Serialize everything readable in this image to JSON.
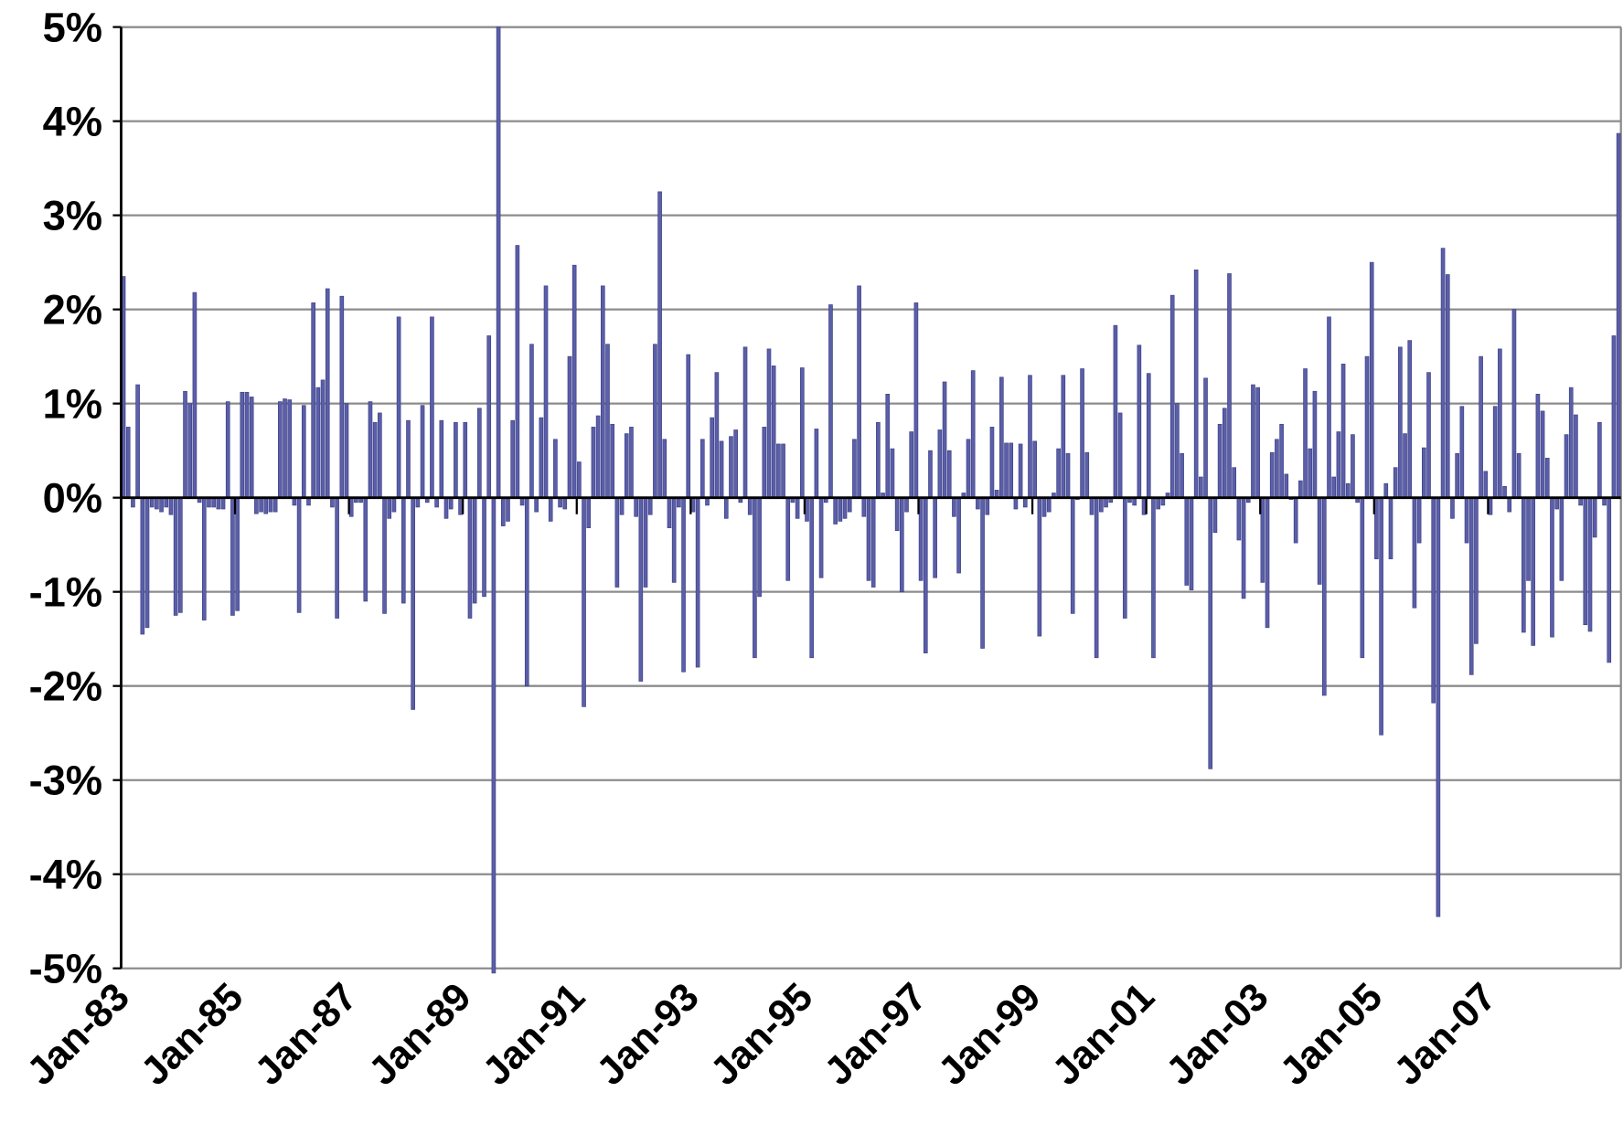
{
  "chart_data": {
    "type": "bar",
    "color": "#5b5fa8",
    "edge_color": "#3c3f86",
    "grid": true,
    "ylim": [
      -5,
      5
    ],
    "yticks": [
      {
        "value": 5,
        "label": "5%"
      },
      {
        "value": 4,
        "label": "4%"
      },
      {
        "value": 3,
        "label": "3%"
      },
      {
        "value": 2,
        "label": "2%"
      },
      {
        "value": 1,
        "label": "1%"
      },
      {
        "value": 0,
        "label": "0%"
      },
      {
        "value": -1,
        "label": "-1%"
      },
      {
        "value": -2,
        "label": "-2%"
      },
      {
        "value": -3,
        "label": "-3%"
      },
      {
        "value": -4,
        "label": "-4%"
      },
      {
        "value": -5,
        "label": "-5%"
      }
    ],
    "categories": [
      "Jan-83",
      null,
      null,
      null,
      null,
      null,
      null,
      null,
      null,
      null,
      null,
      null,
      null,
      null,
      null,
      null,
      null,
      null,
      null,
      null,
      null,
      null,
      null,
      null,
      "Jan-85",
      null,
      null,
      null,
      null,
      null,
      null,
      null,
      null,
      null,
      null,
      null,
      null,
      null,
      null,
      null,
      null,
      null,
      null,
      null,
      null,
      null,
      null,
      null,
      "Jan-87",
      null,
      null,
      null,
      null,
      null,
      null,
      null,
      null,
      null,
      null,
      null,
      null,
      null,
      null,
      null,
      null,
      null,
      null,
      null,
      null,
      null,
      null,
      null,
      "Jan-89",
      null,
      null,
      null,
      null,
      null,
      null,
      null,
      null,
      null,
      null,
      null,
      null,
      null,
      null,
      null,
      null,
      null,
      null,
      null,
      null,
      null,
      null,
      null,
      "Jan-91",
      null,
      null,
      null,
      null,
      null,
      null,
      null,
      null,
      null,
      null,
      null,
      null,
      null,
      null,
      null,
      null,
      null,
      null,
      null,
      null,
      null,
      null,
      null,
      "Jan-93",
      null,
      null,
      null,
      null,
      null,
      null,
      null,
      null,
      null,
      null,
      null,
      null,
      null,
      null,
      null,
      null,
      null,
      null,
      null,
      null,
      null,
      null,
      null,
      "Jan-95",
      null,
      null,
      null,
      null,
      null,
      null,
      null,
      null,
      null,
      null,
      null,
      null,
      null,
      null,
      null,
      null,
      null,
      null,
      null,
      null,
      null,
      null,
      null,
      "Jan-97",
      null,
      null,
      null,
      null,
      null,
      null,
      null,
      null,
      null,
      null,
      null,
      null,
      null,
      null,
      null,
      null,
      null,
      null,
      null,
      null,
      null,
      null,
      null,
      "Jan-99",
      null,
      null,
      null,
      null,
      null,
      null,
      null,
      null,
      null,
      null,
      null,
      null,
      null,
      null,
      null,
      null,
      null,
      null,
      null,
      null,
      null,
      null,
      null,
      "Jan-01",
      null,
      null,
      null,
      null,
      null,
      null,
      null,
      null,
      null,
      null,
      null,
      null,
      null,
      null,
      null,
      null,
      null,
      null,
      null,
      null,
      null,
      null,
      null,
      "Jan-03",
      null,
      null,
      null,
      null,
      null,
      null,
      null,
      null,
      null,
      null,
      null,
      null,
      null,
      null,
      null,
      null,
      null,
      null,
      null,
      null,
      null,
      null,
      null,
      "Jan-05",
      null,
      null,
      null,
      null,
      null,
      null,
      null,
      null,
      null,
      null,
      null,
      null,
      null,
      null,
      null,
      null,
      null,
      null,
      null,
      null,
      null,
      null,
      null,
      "Jan-07",
      null,
      null,
      null,
      null,
      null,
      null,
      null,
      null,
      null,
      null,
      null,
      null,
      null,
      null,
      null,
      null,
      null,
      null,
      null,
      null,
      null,
      null,
      null,
      null,
      null,
      null,
      null
    ],
    "values": [
      2.35,
      0.75,
      -0.1,
      1.2,
      -1.45,
      -1.38,
      -0.1,
      -0.12,
      -0.15,
      -0.1,
      -0.18,
      -1.25,
      -1.22,
      1.13,
      1.0,
      2.18,
      -0.05,
      -1.3,
      -0.1,
      -0.1,
      -0.12,
      -0.12,
      1.02,
      -1.25,
      -1.2,
      1.12,
      1.12,
      1.07,
      -0.17,
      -0.15,
      -0.17,
      -0.15,
      -0.15,
      1.02,
      1.05,
      1.04,
      -0.08,
      -1.22,
      0.98,
      -0.08,
      2.07,
      1.17,
      1.25,
      2.22,
      -0.1,
      -1.28,
      2.14,
      1.0,
      -0.2,
      -0.05,
      -0.05,
      -1.1,
      1.02,
      0.8,
      0.9,
      -1.23,
      -0.22,
      -0.15,
      1.92,
      -1.12,
      0.82,
      -2.25,
      -0.1,
      0.98,
      -0.05,
      1.92,
      -0.1,
      0.82,
      -0.22,
      -0.12,
      0.8,
      -0.18,
      0.8,
      -1.28,
      -1.12,
      0.95,
      -1.05,
      1.72,
      -5.05,
      5.0,
      -0.3,
      -0.25,
      0.82,
      2.68,
      -0.08,
      -2.0,
      1.63,
      -0.15,
      0.85,
      2.25,
      -0.25,
      0.62,
      -0.1,
      -0.12,
      1.5,
      2.47,
      0.38,
      -2.22,
      -0.32,
      0.75,
      0.87,
      2.25,
      1.63,
      0.78,
      -0.95,
      -0.18,
      0.68,
      0.75,
      -0.2,
      -1.95,
      -0.95,
      -0.18,
      1.63,
      3.25,
      0.62,
      -0.32,
      -0.9,
      -0.1,
      -1.85,
      1.52,
      -0.15,
      -1.8,
      0.62,
      -0.08,
      0.85,
      1.33,
      0.6,
      -0.22,
      0.65,
      0.72,
      -0.05,
      1.6,
      -0.18,
      -1.7,
      -1.05,
      0.75,
      1.58,
      1.4,
      0.57,
      0.57,
      -0.88,
      -0.05,
      -0.22,
      1.38,
      -0.25,
      -1.7,
      0.73,
      -0.85,
      -0.05,
      2.05,
      -0.28,
      -0.25,
      -0.22,
      -0.15,
      0.62,
      2.25,
      -0.2,
      -0.88,
      -0.95,
      0.8,
      0.05,
      1.1,
      0.52,
      -0.35,
      -1.0,
      -0.15,
      0.7,
      2.07,
      -0.88,
      -1.65,
      0.5,
      -0.85,
      0.72,
      1.23,
      0.5,
      -0.2,
      -0.8,
      0.05,
      0.62,
      1.35,
      -0.12,
      -1.6,
      -0.18,
      0.75,
      0.08,
      1.28,
      0.58,
      0.58,
      -0.12,
      0.57,
      -0.1,
      1.3,
      0.6,
      -1.47,
      -0.2,
      -0.15,
      0.05,
      0.52,
      1.3,
      0.47,
      -1.23,
      -0.02,
      1.37,
      0.48,
      -0.18,
      -1.7,
      -0.15,
      -0.1,
      -0.05,
      1.83,
      0.9,
      -1.28,
      -0.05,
      -0.08,
      1.62,
      -0.18,
      1.32,
      -1.7,
      -0.12,
      -0.08,
      0.05,
      2.15,
      1.0,
      0.47,
      -0.93,
      -0.98,
      2.42,
      0.22,
      1.27,
      -2.88,
      -0.37,
      0.78,
      0.95,
      2.38,
      0.32,
      -0.45,
      -1.07,
      -0.05,
      1.2,
      1.17,
      -0.9,
      -1.38,
      0.48,
      0.62,
      0.78,
      0.25,
      -0.02,
      -0.48,
      0.18,
      1.37,
      0.52,
      1.13,
      -0.92,
      -2.1,
      1.92,
      0.22,
      0.7,
      1.42,
      0.15,
      0.67,
      -0.05,
      -1.7,
      1.5,
      2.5,
      -0.65,
      -2.52,
      0.15,
      -0.65,
      0.32,
      1.6,
      0.68,
      1.67,
      -1.17,
      -0.48,
      0.53,
      1.33,
      -2.18,
      -4.45,
      2.65,
      2.37,
      -0.22,
      0.47,
      0.97,
      -0.48,
      -1.88,
      -1.55,
      1.5,
      0.28,
      -0.18,
      0.97,
      1.58,
      0.12,
      -0.15,
      2.0,
      0.47,
      -1.43,
      -0.88,
      -1.57,
      1.1,
      0.92,
      0.42,
      -1.48,
      -0.12,
      -0.88,
      0.67,
      1.17,
      0.88,
      -0.08,
      -1.35,
      -1.42,
      -0.42,
      0.8,
      -0.08,
      -1.75,
      1.72,
      3.87
    ]
  }
}
